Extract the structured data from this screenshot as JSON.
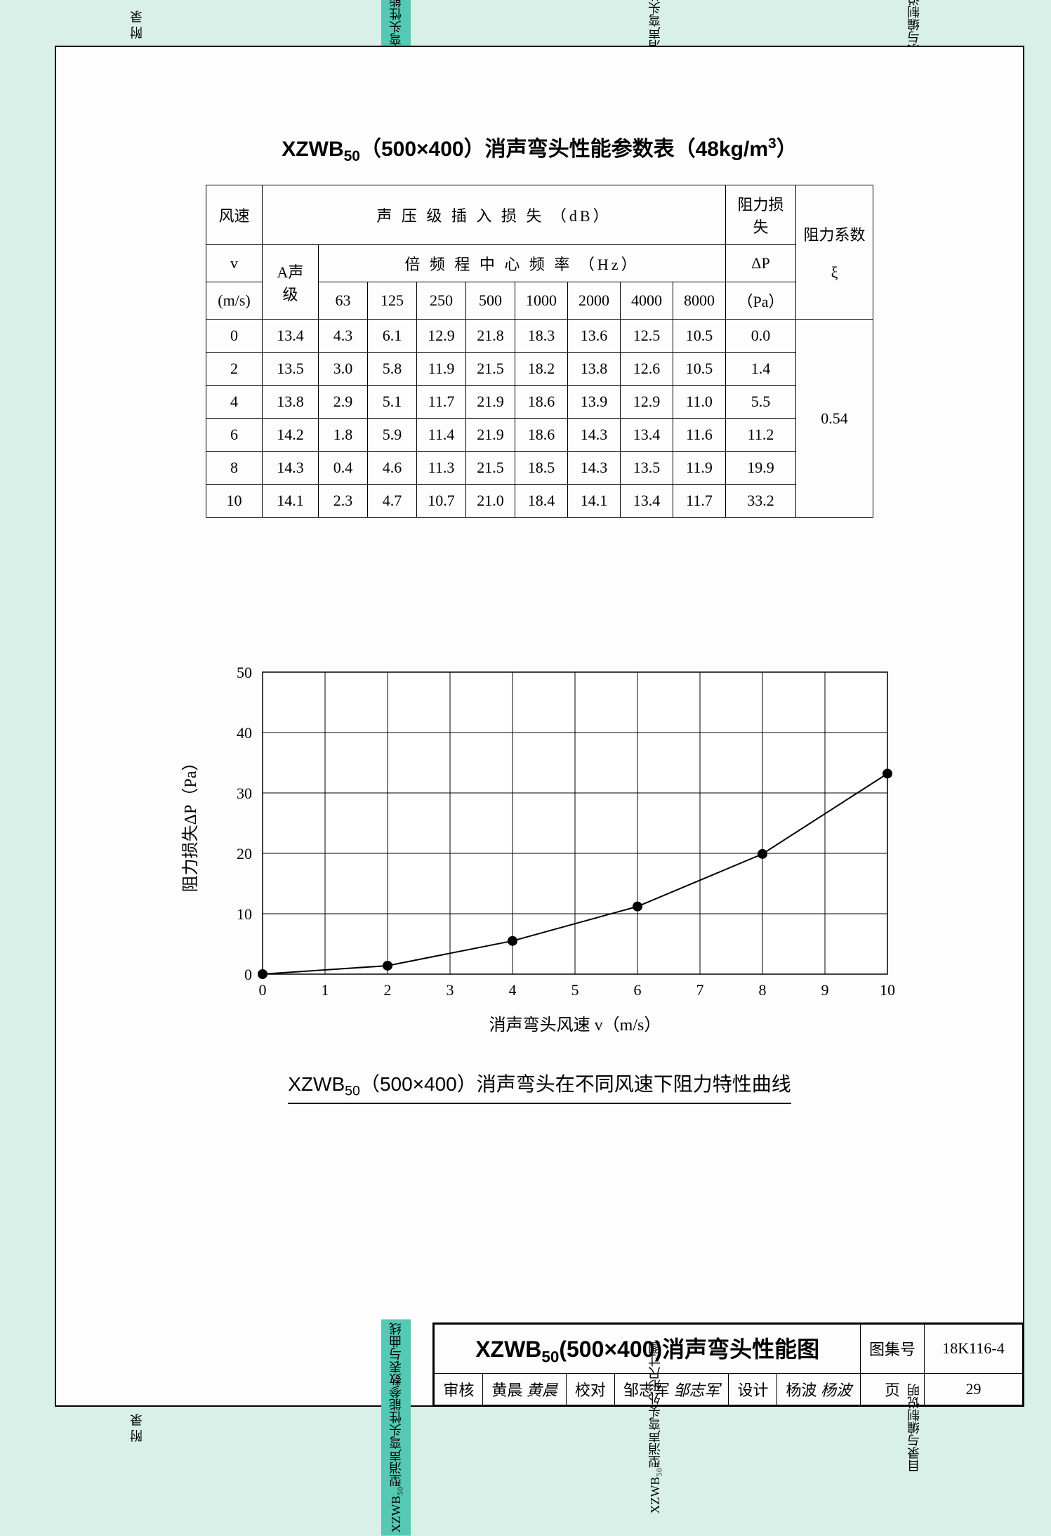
{
  "tabs": {
    "t1": "附  录",
    "t2": "XZWB₅₀型消声弯头性能参数表与曲线",
    "t3": "XZWB₅₀型消声弯头外形尺寸图",
    "t4": "目录与编制说明"
  },
  "table": {
    "title_prefix": "XZWB",
    "title_sub": "50",
    "title_rest": "（500×400）消声弯头性能参数表（48kg/m",
    "title_sup": "3",
    "title_end": "）",
    "h_speed": "风速",
    "h_v": "v",
    "h_unit": "(m/s)",
    "h_spl": "声 压 级 插 入 损 失 （dB）",
    "h_octave": "倍 频 程 中 心 频 率 （Hz）",
    "h_a": "A声级",
    "h_dp_label": "阻力损失",
    "h_dp": "ΔP",
    "h_dp_unit": "（Pa）",
    "h_xi_label": "阻力系数",
    "h_xi": "ξ",
    "freqs": [
      "63",
      "125",
      "250",
      "500",
      "1000",
      "2000",
      "4000",
      "8000"
    ],
    "rows": [
      {
        "v": "0",
        "a": "13.4",
        "f": [
          "4.3",
          "6.1",
          "12.9",
          "21.8",
          "18.3",
          "13.6",
          "12.5",
          "10.5"
        ],
        "dp": "0.0"
      },
      {
        "v": "2",
        "a": "13.5",
        "f": [
          "3.0",
          "5.8",
          "11.9",
          "21.5",
          "18.2",
          "13.8",
          "12.6",
          "10.5"
        ],
        "dp": "1.4"
      },
      {
        "v": "4",
        "a": "13.8",
        "f": [
          "2.9",
          "5.1",
          "11.7",
          "21.9",
          "18.6",
          "13.9",
          "12.9",
          "11.0"
        ],
        "dp": "5.5"
      },
      {
        "v": "6",
        "a": "14.2",
        "f": [
          "1.8",
          "5.9",
          "11.4",
          "21.9",
          "18.6",
          "14.3",
          "13.4",
          "11.6"
        ],
        "dp": "11.2"
      },
      {
        "v": "8",
        "a": "14.3",
        "f": [
          "0.4",
          "4.6",
          "11.3",
          "21.5",
          "18.5",
          "14.3",
          "13.5",
          "11.9"
        ],
        "dp": "19.9"
      },
      {
        "v": "10",
        "a": "14.1",
        "f": [
          "2.3",
          "4.7",
          "10.7",
          "21.0",
          "18.4",
          "14.1",
          "13.4",
          "11.7"
        ],
        "dp": "33.2"
      }
    ],
    "xi_value": "0.54"
  },
  "chart": {
    "type": "line",
    "ylabel": "阻力损失ΔP（Pa）",
    "xlabel": "消声弯头风速 v（m/s）",
    "caption_prefix": "XZWB",
    "caption_sub": "50",
    "caption_rest": "（500×400）消声弯头在不同风速下阻力特性曲线",
    "xlim": [
      0,
      10
    ],
    "xtick_step": 1,
    "ylim": [
      0,
      50
    ],
    "ytick_step": 10,
    "series_color": "#000000",
    "marker": "circle",
    "marker_size": 7,
    "line_width": 2,
    "grid_color": "#000000",
    "grid_width": 1,
    "background": "#ffffff",
    "tick_fontsize": 22,
    "label_fontsize": 24,
    "data": [
      {
        "x": 0,
        "y": 0.0
      },
      {
        "x": 2,
        "y": 1.4
      },
      {
        "x": 4,
        "y": 5.5
      },
      {
        "x": 6,
        "y": 11.2
      },
      {
        "x": 8,
        "y": 19.9
      },
      {
        "x": 10,
        "y": 33.2
      }
    ]
  },
  "titleblock": {
    "main_prefix": "XZWB",
    "main_sub": "50",
    "main_rest": "(500×400)消声弯头性能图",
    "atlas_label": "图集号",
    "atlas_value": "18K116-4",
    "review_label": "审核",
    "review_name": "黄晨",
    "review_sig": "黄晨",
    "check_label": "校对",
    "check_name": "邹志军",
    "check_sig": "邹志军",
    "design_label": "设计",
    "design_name": "杨波",
    "design_sig": "杨波",
    "page_label": "页",
    "page_value": "29"
  }
}
